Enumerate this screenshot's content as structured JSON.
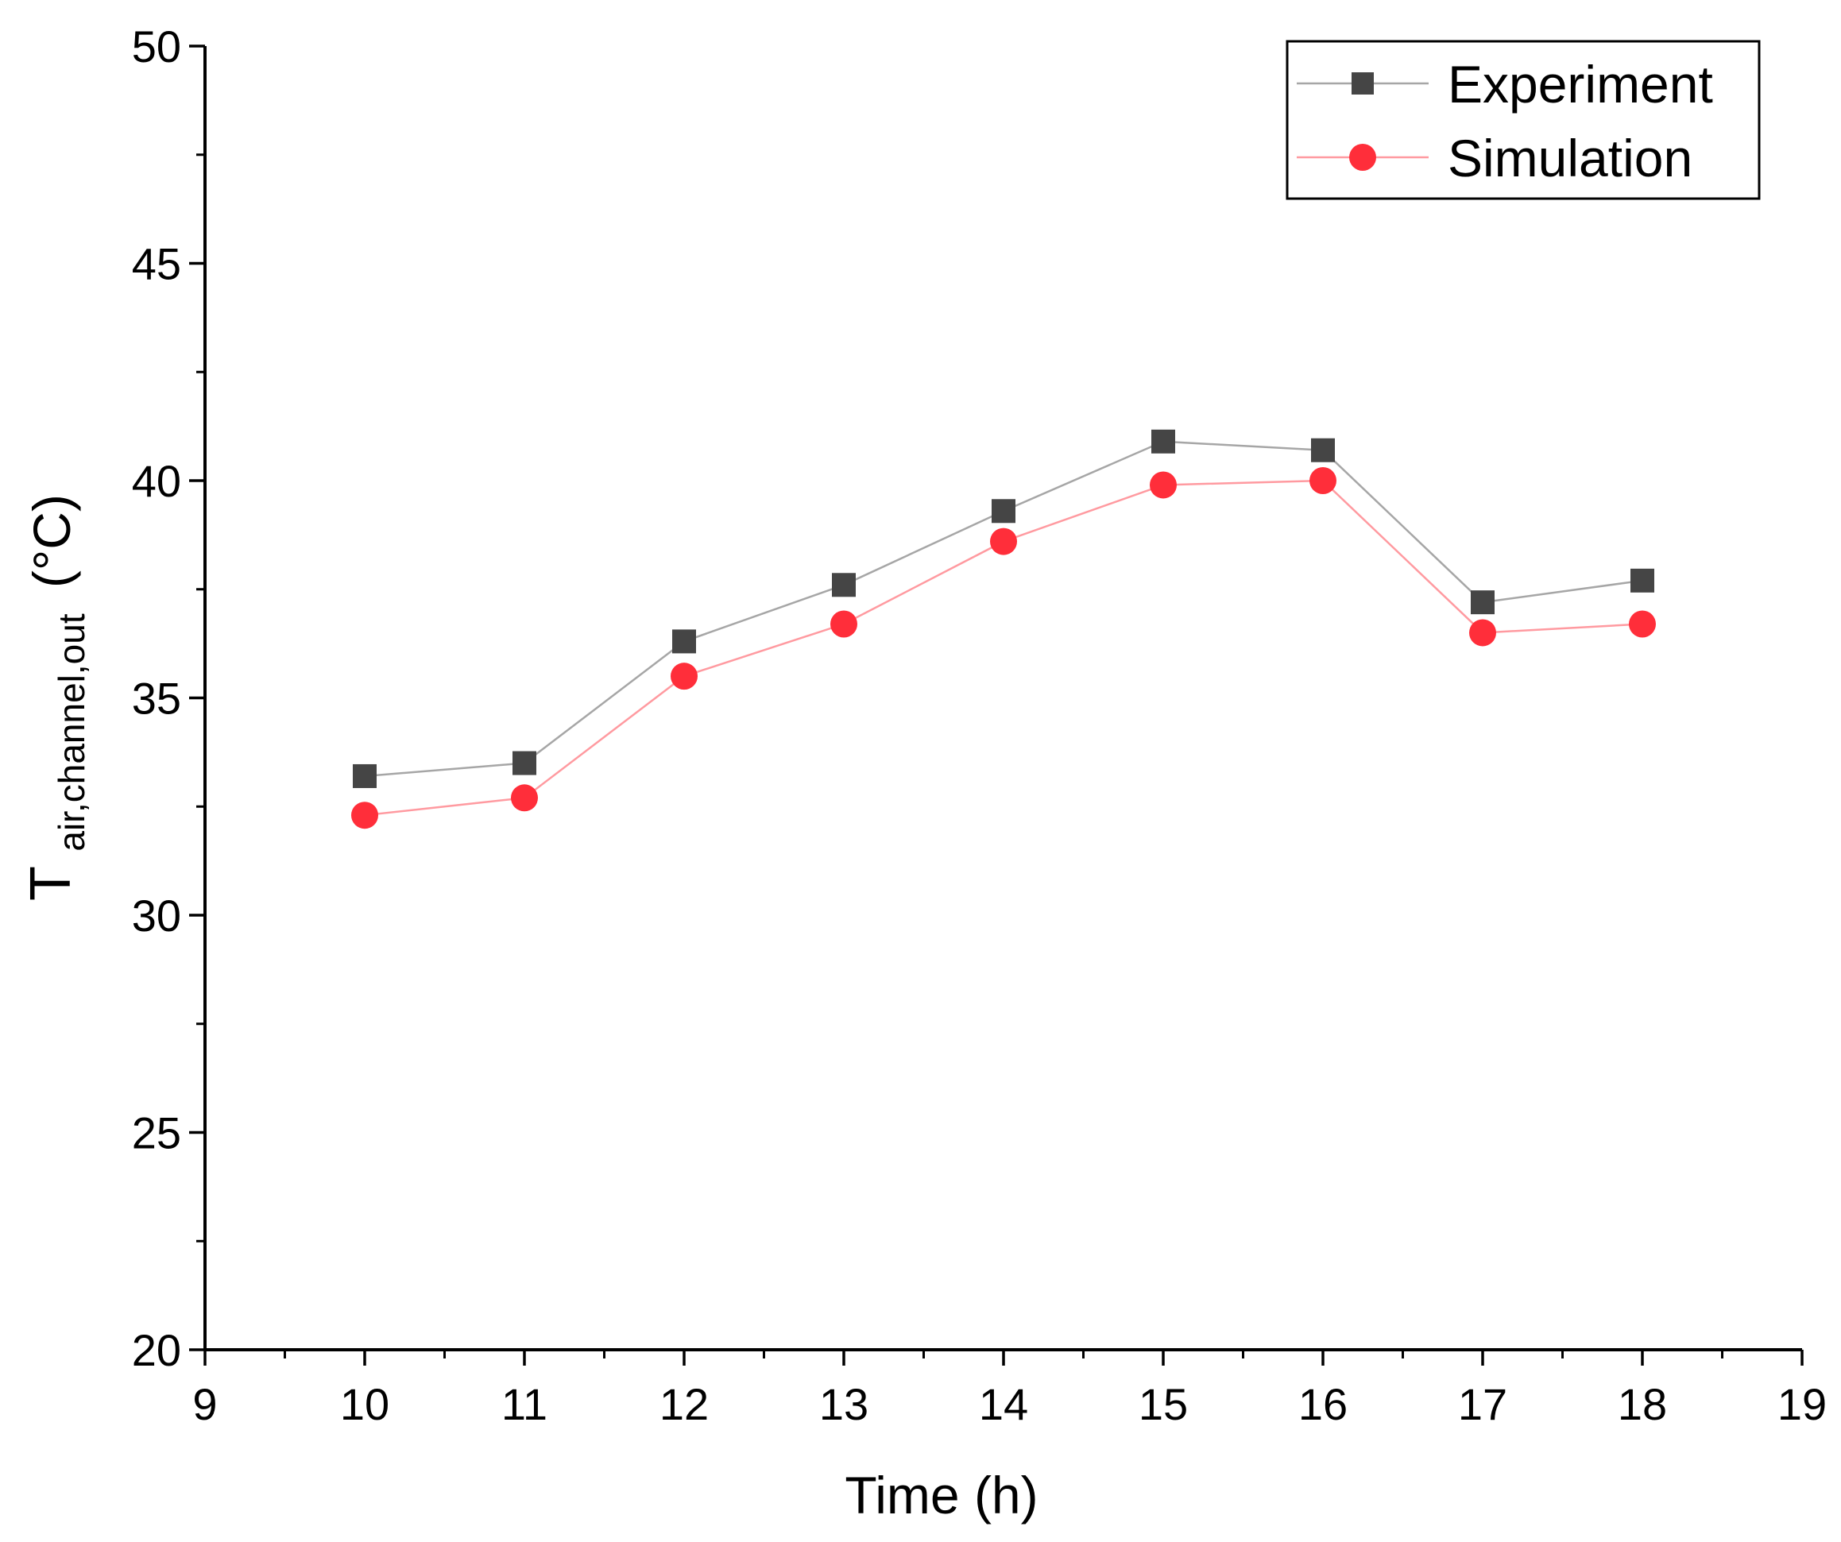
{
  "chart_data": {
    "type": "line",
    "title": "",
    "xlabel": "Time (h)",
    "ylabel": {
      "main": "T",
      "subscript": "air,channel,out",
      "unit": "(°C)"
    },
    "xlim": [
      9,
      19
    ],
    "ylim": [
      20,
      50
    ],
    "xticks": [
      9,
      10,
      11,
      12,
      13,
      14,
      15,
      16,
      17,
      18,
      19
    ],
    "yticks": [
      20,
      25,
      30,
      35,
      40,
      45,
      50
    ],
    "grid": false,
    "legend_position": "top-right",
    "x": [
      10,
      11,
      12,
      13,
      14,
      15,
      16,
      17,
      18
    ],
    "series": [
      {
        "name": "Experiment",
        "marker": "square",
        "marker_color": "#454545",
        "line_color": "#a6a6a6",
        "values": [
          33.2,
          33.5,
          36.3,
          37.6,
          39.3,
          40.9,
          40.7,
          37.2,
          37.7
        ]
      },
      {
        "name": "Simulation",
        "marker": "circle",
        "marker_color": "#ff2e3a",
        "line_color": "#ff9aa0",
        "values": [
          32.3,
          32.7,
          35.5,
          36.7,
          38.6,
          39.9,
          40.0,
          36.5,
          36.7
        ]
      }
    ]
  }
}
